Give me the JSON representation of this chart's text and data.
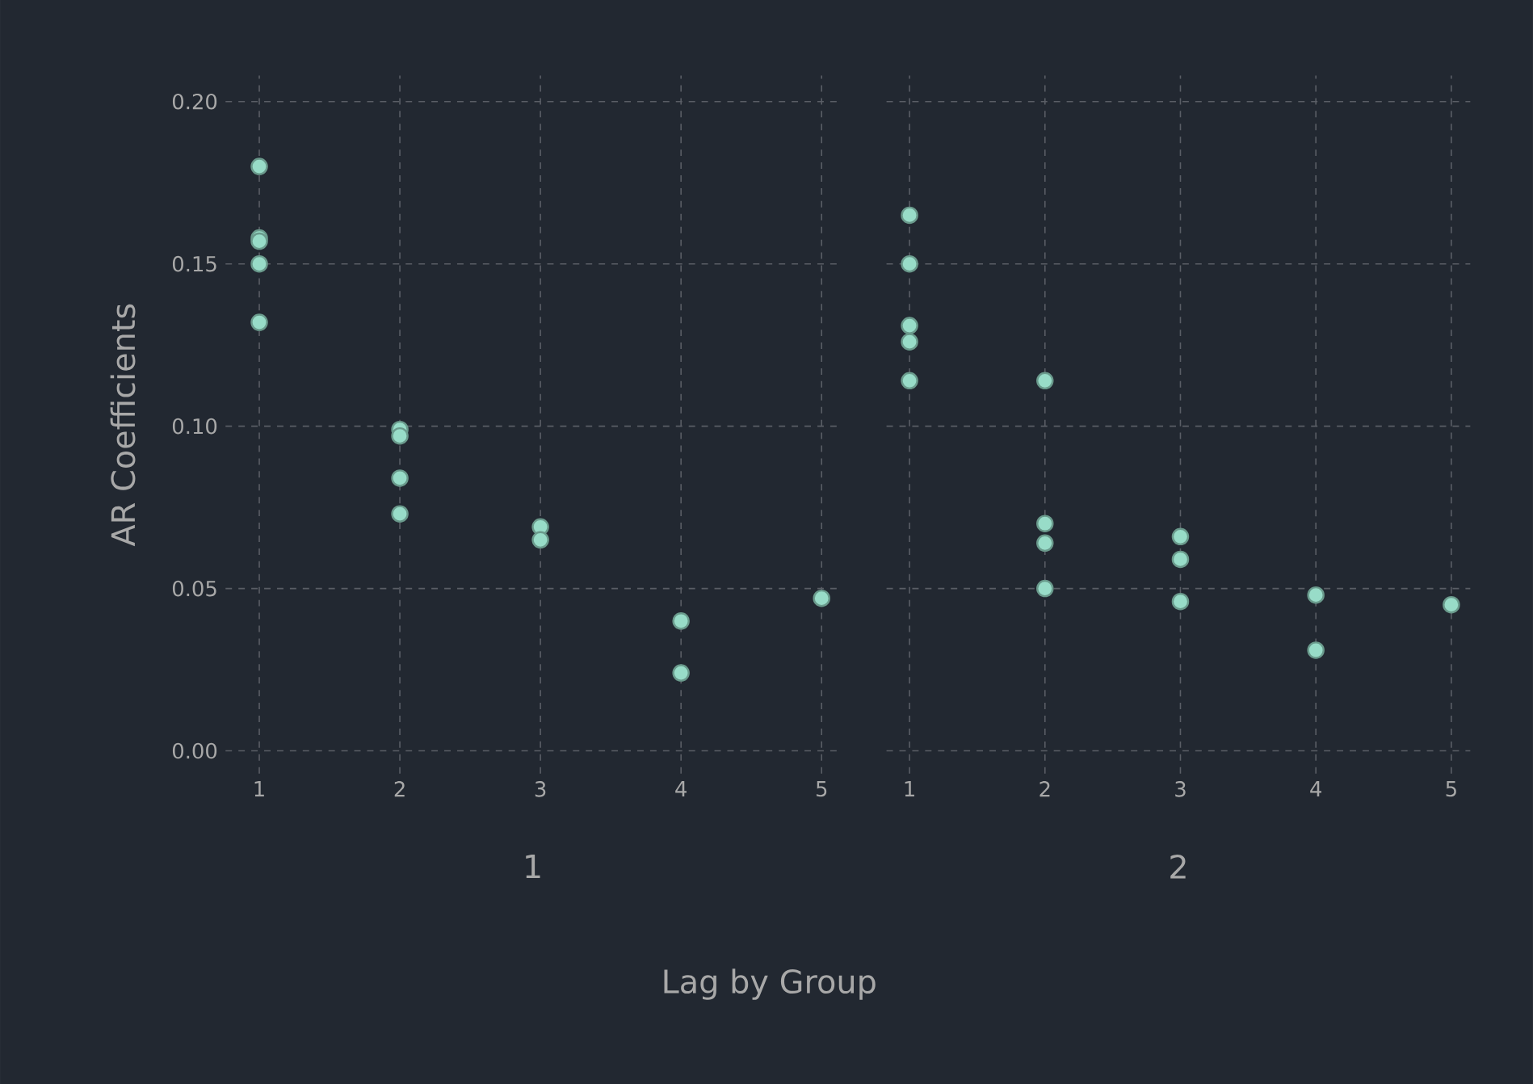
{
  "chart_data": [
    {
      "type": "scatter",
      "xlabel": "1",
      "ylabel": "AR Coefficients",
      "annotations": [
        "Lag by Group"
      ],
      "grid": true,
      "xlim": [
        0.76,
        5.13
      ],
      "ylim": [
        -0.007,
        0.208
      ],
      "xticks": [
        1,
        2,
        3,
        4,
        5
      ],
      "yticks": [
        {
          "value": 0,
          "label": "0.00"
        },
        {
          "value": 0.05,
          "label": "0.05"
        },
        {
          "value": 0.1,
          "label": "0.10"
        },
        {
          "value": 0.15,
          "label": "0.15"
        },
        {
          "value": 0.2,
          "label": "0.20"
        }
      ],
      "series": [
        {
          "color": "#98dcc8",
          "x": [
            1,
            1,
            1,
            1,
            1,
            2,
            2,
            2,
            2,
            3,
            3,
            4,
            4,
            5
          ],
          "values": [
            0.18,
            0.158,
            0.157,
            0.15,
            0.132,
            0.099,
            0.097,
            0.084,
            0.073,
            0.069,
            0.065,
            0.04,
            0.024,
            0.047
          ]
        }
      ]
    },
    {
      "type": "scatter",
      "xlabel": "2",
      "grid": true,
      "tick_labels": "x",
      "xlim": [
        0.83,
        5.14
      ],
      "ylim": [
        -0.007,
        0.208
      ],
      "xticks": [
        1,
        2,
        3,
        4,
        5
      ],
      "yticks": [
        0,
        0.05,
        0.1,
        0.15,
        0.2
      ],
      "series": [
        {
          "color": "#98dcc8",
          "x": [
            1,
            1,
            1,
            1,
            1,
            2,
            2,
            2,
            2,
            3,
            3,
            3,
            4,
            4,
            5
          ],
          "values": [
            0.165,
            0.15,
            0.131,
            0.126,
            0.114,
            0.114,
            0.07,
            0.064,
            0.05,
            0.066,
            0.059,
            0.046,
            0.048,
            0.031,
            0.045
          ]
        }
      ]
    }
  ]
}
